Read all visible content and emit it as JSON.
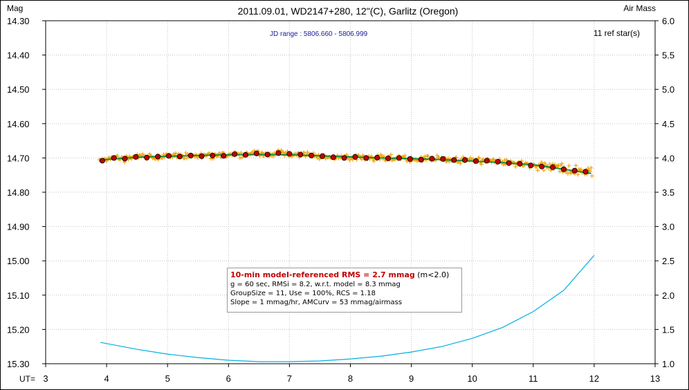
{
  "title": "2011.09.01, WD2147+280, 12\"(C), Garlitz (Oregon)",
  "left_axis_label": "Mag",
  "right_axis_label": "Air Mass",
  "x_axis_label": "UT=",
  "jd_range": "JD range : 5806.660 - 5806.999",
  "ref_stars": "11 ref star(s)",
  "stats": {
    "rms_label": "10-min model-referenced RMS = 2.7 mmag",
    "rms_note": " (m<2.0)",
    "line2": "g = 60 sec, RMSi = 8.2, w.r.t. model = 8.3 mmag",
    "line3": "GroupSize = 11, Use = 100%, RCS = 1.18",
    "line4": "Slope = 1 mmag/hr, AMCurv = 53 mmag/airmass"
  },
  "colors": {
    "raw_points": "#f0a000",
    "binned_points": "#c00000",
    "model_line": "#1a8a3a",
    "airmass_line": "#00b0e0",
    "grid": "#c0c0c0"
  },
  "chart_data": {
    "type": "scatter",
    "x_ticks": [
      "3",
      "4",
      "5",
      "6",
      "7",
      "8",
      "9",
      "10",
      "11",
      "12",
      "13"
    ],
    "y_ticks_left": [
      "14.30",
      "14.40",
      "14.50",
      "14.60",
      "14.70",
      "14.80",
      "14.90",
      "15.00",
      "15.10",
      "15.20",
      "15.30"
    ],
    "y_ticks_right": [
      "6.0",
      "5.5",
      "5.0",
      "4.5",
      "4.0",
      "3.5",
      "3.0",
      "2.5",
      "2.0",
      "1.5",
      "1.0"
    ],
    "xlim": [
      3,
      13
    ],
    "ylim_left": [
      14.3,
      15.3
    ],
    "ylim_right": [
      1.0,
      6.0
    ],
    "left_axis_inverted": true,
    "grid": true,
    "series": [
      {
        "kind": "binned",
        "x": [
          3.93,
          4.12,
          4.3,
          4.48,
          4.66,
          4.84,
          5.02,
          5.2,
          5.38,
          5.56,
          5.74,
          5.92,
          6.1,
          6.28,
          6.46,
          6.64,
          6.82,
          7.0,
          7.18,
          7.36,
          7.54,
          7.72,
          7.9,
          8.08,
          8.26,
          8.44,
          8.62,
          8.8,
          8.98,
          9.16,
          9.34,
          9.52,
          9.7,
          9.88,
          10.06,
          10.24,
          10.42,
          10.6,
          10.78,
          10.96,
          11.14,
          11.32,
          11.5,
          11.68,
          11.86
        ],
        "y": [
          14.708,
          14.7,
          14.702,
          14.697,
          14.699,
          14.696,
          14.694,
          14.696,
          14.693,
          14.695,
          14.693,
          14.694,
          14.689,
          14.691,
          14.687,
          14.69,
          14.686,
          14.688,
          14.69,
          14.693,
          14.695,
          14.698,
          14.7,
          14.697,
          14.7,
          14.699,
          14.701,
          14.7,
          14.703,
          14.705,
          14.702,
          14.703,
          14.706,
          14.706,
          14.709,
          14.708,
          14.711,
          14.715,
          14.717,
          14.722,
          14.725,
          14.727,
          14.733,
          14.737,
          14.74
        ]
      },
      {
        "kind": "model",
        "x": [
          3.9,
          4.5,
          5.0,
          5.5,
          6.0,
          6.5,
          7.0,
          7.5,
          8.0,
          8.5,
          9.0,
          9.5,
          10.0,
          10.5,
          11.0,
          11.5,
          11.95
        ],
        "y": [
          14.706,
          14.698,
          14.695,
          14.693,
          14.691,
          14.69,
          14.691,
          14.694,
          14.697,
          14.7,
          14.702,
          14.705,
          14.709,
          14.714,
          14.72,
          14.733,
          14.745
        ]
      },
      {
        "kind": "airmass",
        "x": [
          3.9,
          4.5,
          5.0,
          5.5,
          6.0,
          6.5,
          7.0,
          7.5,
          8.0,
          8.5,
          9.0,
          9.5,
          10.0,
          10.5,
          11.0,
          11.5,
          12.0
        ],
        "y": [
          1.31,
          1.21,
          1.14,
          1.09,
          1.05,
          1.03,
          1.03,
          1.04,
          1.07,
          1.11,
          1.17,
          1.25,
          1.37,
          1.53,
          1.76,
          2.07,
          2.58
        ]
      }
    ]
  }
}
